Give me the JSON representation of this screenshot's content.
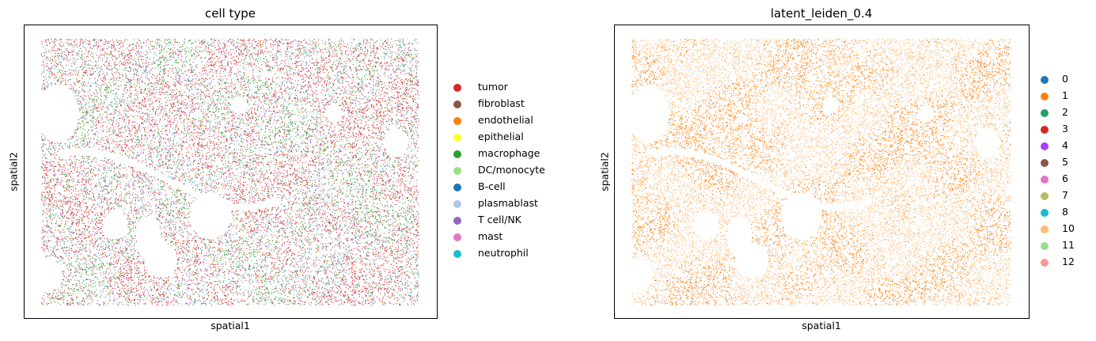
{
  "chart_data": [
    {
      "type": "scatter",
      "title": "cell type",
      "xlabel": "spatial1",
      "ylabel": "spatial2",
      "grid": false,
      "ticks_shown": false,
      "legend_placement": "right",
      "series": [
        {
          "name": "tumor",
          "color": "#d62728",
          "share": 0.38
        },
        {
          "name": "fibroblast",
          "color": "#8c564b",
          "share": 0.02
        },
        {
          "name": "endothelial",
          "color": "#ff7f0e",
          "share": 0.01
        },
        {
          "name": "epithelial",
          "color": "#ffff33",
          "share": 0.005
        },
        {
          "name": "macrophage",
          "color": "#2ca02c",
          "share": 0.18
        },
        {
          "name": "DC/monocyte",
          "color": "#98df8a",
          "share": 0.06
        },
        {
          "name": "B-cell",
          "color": "#1f77b4",
          "share": 0.015
        },
        {
          "name": "plasmablast",
          "color": "#aec7e8",
          "share": 0.12
        },
        {
          "name": "T cell/NK",
          "color": "#9467bd",
          "share": 0.18
        },
        {
          "name": "mast",
          "color": "#e377c2",
          "share": 0.01
        },
        {
          "name": "neutrophil",
          "color": "#17becf",
          "share": 0.02
        }
      ]
    },
    {
      "type": "scatter",
      "title": "latent_leiden_0.4",
      "xlabel": "spatial1",
      "ylabel": "spatial2",
      "grid": false,
      "ticks_shown": false,
      "legend_placement": "right",
      "series": [
        {
          "name": "0",
          "color": "#1f77b4",
          "share": 0.0
        },
        {
          "name": "1",
          "color": "#ff7f0e",
          "share": 0.45
        },
        {
          "name": "2",
          "color": "#279e68",
          "share": 0.0
        },
        {
          "name": "3",
          "color": "#d62728",
          "share": 0.0
        },
        {
          "name": "4",
          "color": "#aa40fc",
          "share": 0.0
        },
        {
          "name": "5",
          "color": "#8c564b",
          "share": 0.01
        },
        {
          "name": "6",
          "color": "#e377c2",
          "share": 0.0
        },
        {
          "name": "7",
          "color": "#b5bd61",
          "share": 0.0
        },
        {
          "name": "8",
          "color": "#17becf",
          "share": 0.0
        },
        {
          "name": "10",
          "color": "#ffbb78",
          "share": 0.54
        },
        {
          "name": "11",
          "color": "#98df8a",
          "share": 0.0
        },
        {
          "name": "12",
          "color": "#ff9896",
          "share": 0.0
        }
      ]
    }
  ]
}
